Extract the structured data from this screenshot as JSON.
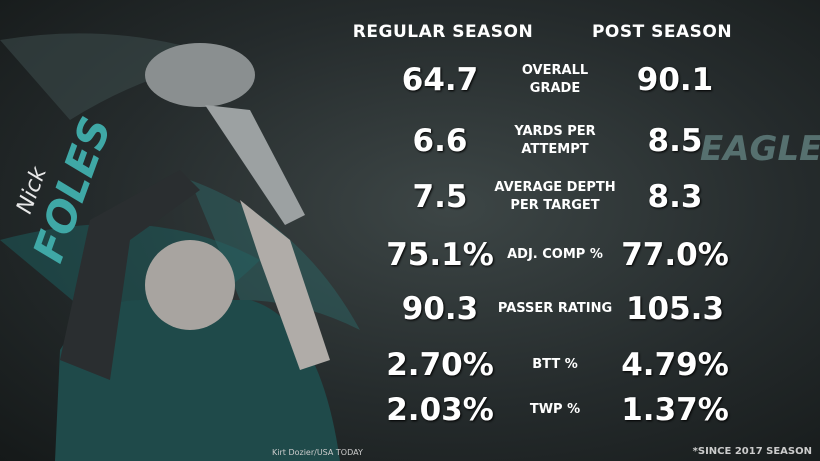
{
  "header": {
    "regular": "REGULAR SEASON",
    "post": "POST SEASON"
  },
  "player": {
    "first": "Nick",
    "last": "FOLES"
  },
  "logo": "EAGLES",
  "rows": [
    {
      "regular": "64.7",
      "label": "OVERALL\nGRADE",
      "post": "90.1"
    },
    {
      "regular": "6.6",
      "label": "YARDS PER\nATTEMPT",
      "post": "8.5"
    },
    {
      "regular": "7.5",
      "label": "AVERAGE DEPTH\nPER TARGET",
      "post": "8.3"
    },
    {
      "regular": "75.1%",
      "label": "ADJ. COMP %",
      "post": "77.0%"
    },
    {
      "regular": "90.3",
      "label": "PASSER RATING",
      "post": "105.3"
    },
    {
      "regular": "2.70%",
      "label": "BTT %",
      "post": "4.79%"
    },
    {
      "regular": "2.03%",
      "label": "TWP %",
      "post": "1.37%"
    }
  ],
  "credit": "Kirt Dozier/USA TODAY",
  "footnote": "*SINCE 2017 SEASON"
}
